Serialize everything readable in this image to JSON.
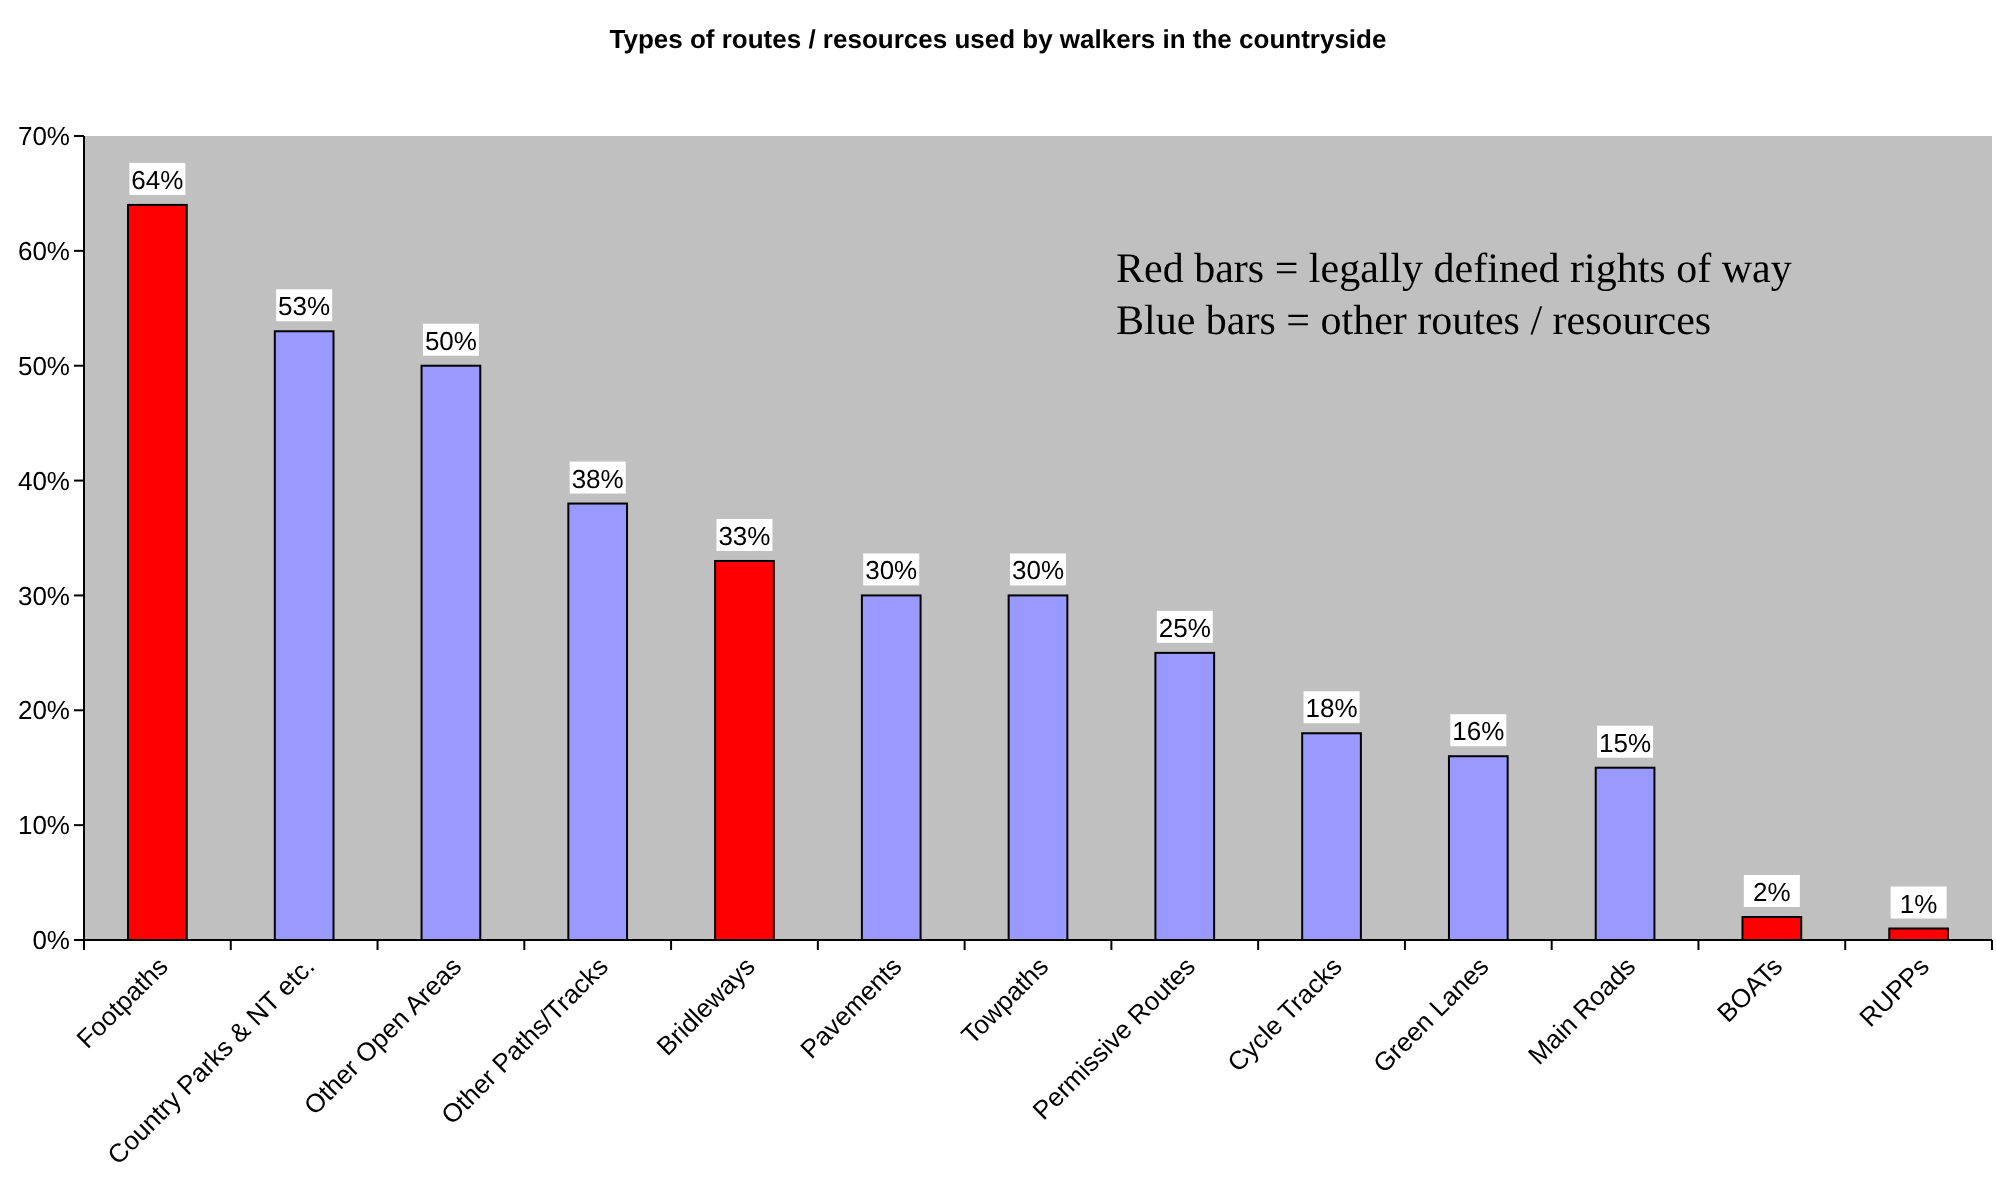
{
  "chart_data": {
    "type": "bar",
    "title": "Types of routes / resources used by walkers in the countryside",
    "categories": [
      "Footpaths",
      "Country Parks & NT etc.",
      "Other Open Areas",
      "Other Paths/Tracks",
      "Bridleways",
      "Pavements",
      "Towpaths",
      "Permissive Routes",
      "Cycle Tracks",
      "Green Lanes",
      "Main Roads",
      "BOATs",
      "RUPPs"
    ],
    "values": [
      64,
      53,
      50,
      38,
      33,
      30,
      30,
      25,
      18,
      16,
      15,
      2,
      1
    ],
    "colors": [
      "#ff0000",
      "#9999ff",
      "#9999ff",
      "#9999ff",
      "#ff0000",
      "#9999ff",
      "#9999ff",
      "#9999ff",
      "#9999ff",
      "#9999ff",
      "#9999ff",
      "#ff0000",
      "#ff0000"
    ],
    "value_labels": [
      "64%",
      "53%",
      "50%",
      "38%",
      "33%",
      "30%",
      "30%",
      "25%",
      "18%",
      "16%",
      "15%",
      "2%",
      "1%"
    ],
    "ylim": [
      0,
      70
    ],
    "yticks": [
      {
        "value": 0,
        "label": "0%"
      },
      {
        "value": 10,
        "label": "10%"
      },
      {
        "value": 20,
        "label": "20%"
      },
      {
        "value": 30,
        "label": "30%"
      },
      {
        "value": 40,
        "label": "40%"
      },
      {
        "value": 50,
        "label": "50%"
      },
      {
        "value": 60,
        "label": "60%"
      },
      {
        "value": 70,
        "label": "70%"
      }
    ],
    "annotations": [
      "Red bars = legally defined rights of way",
      "Blue bars = other routes / resources"
    ]
  }
}
